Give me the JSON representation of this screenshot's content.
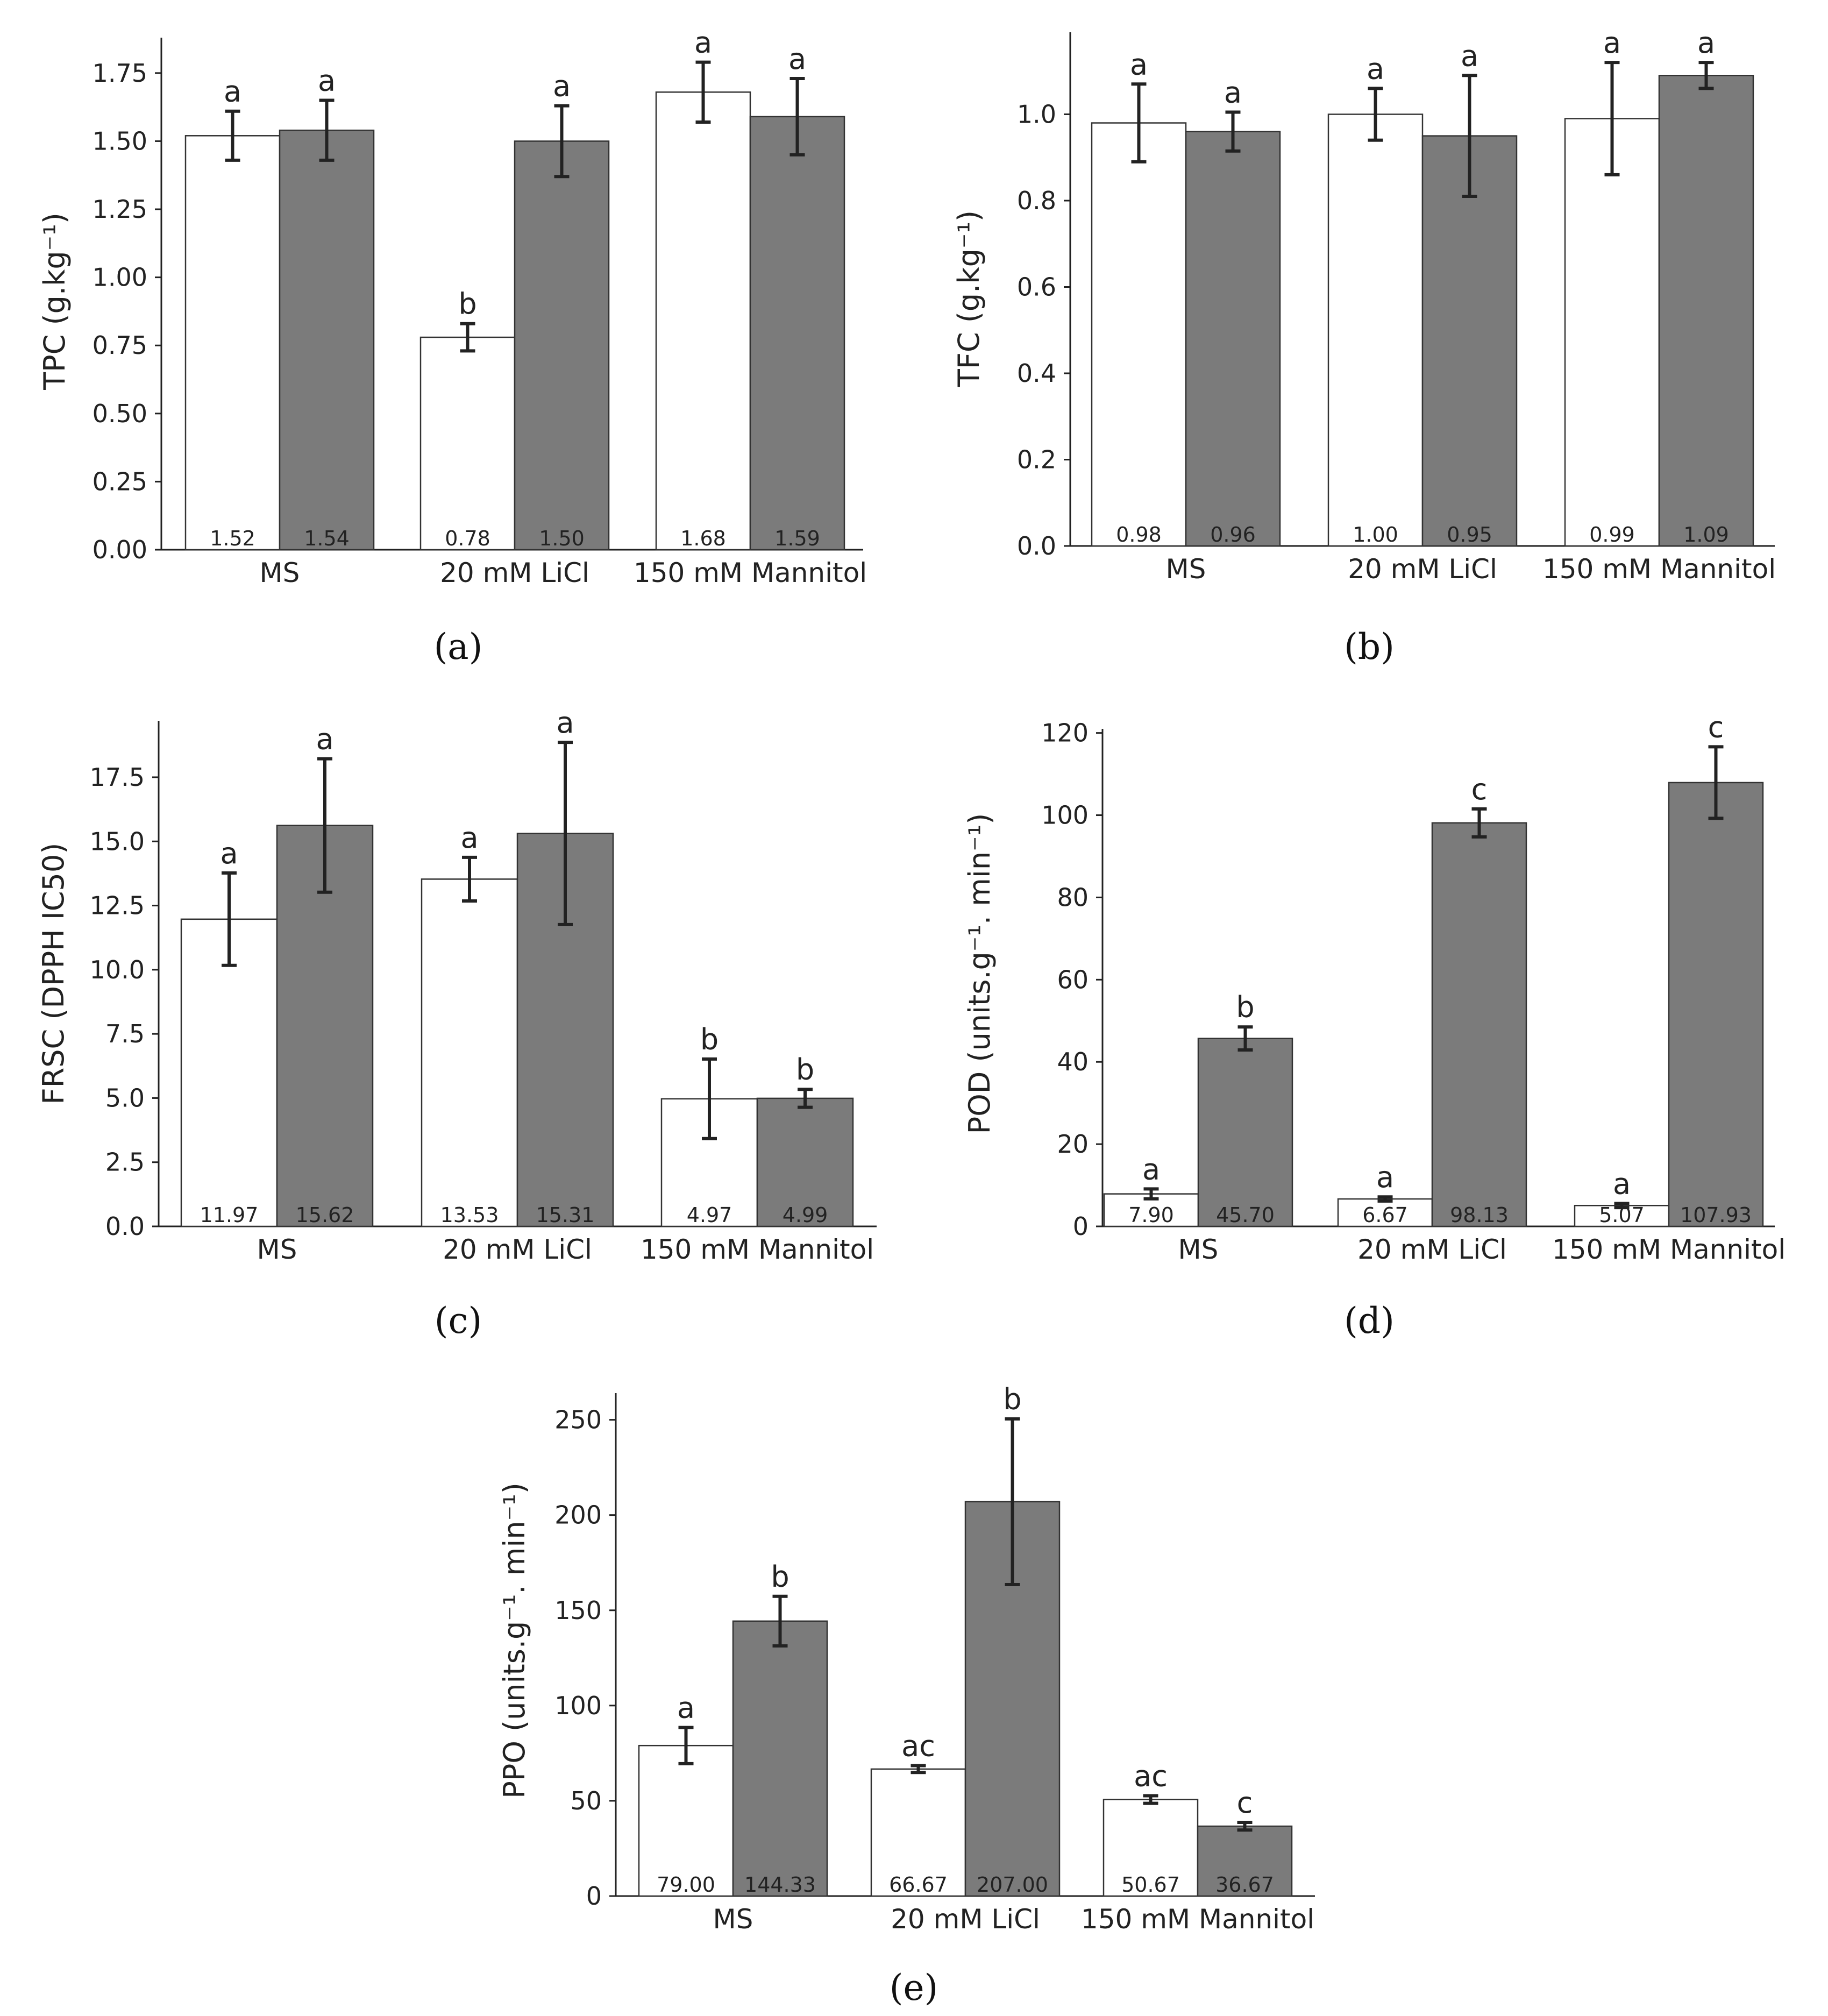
{
  "figure": {
    "panels": [
      {
        "id": "a",
        "label_text": "(a)"
      },
      {
        "id": "b",
        "label_text": "(b)"
      },
      {
        "id": "c",
        "label_text": "(c)"
      },
      {
        "id": "d",
        "label_text": "(d)"
      },
      {
        "id": "e",
        "label_text": "(e)"
      }
    ]
  },
  "colors": {
    "control_fill": "#ffffff",
    "treated_fill": "#7b7b7b",
    "axis": "#222222"
  },
  "chart_data": [
    {
      "id": "a",
      "type": "bar",
      "panel_label": "(a)",
      "ylabel": "TPC (g.kg⁻¹)",
      "ylim": [
        0,
        1.88
      ],
      "yticks": [
        0.0,
        0.25,
        0.5,
        0.75,
        1.0,
        1.25,
        1.5,
        1.75
      ],
      "ytick_labels": [
        "0.00",
        "0.25",
        "0.50",
        "0.75",
        "1.00",
        "1.25",
        "1.50",
        "1.75"
      ],
      "categories": [
        "MS",
        "20 mM LiCl",
        "150 mM Mannitol"
      ],
      "series": [
        {
          "name": "white",
          "values": [
            1.52,
            0.78,
            1.68
          ],
          "value_labels": [
            "1.52",
            "0.78",
            "1.68"
          ],
          "errors": [
            0.09,
            0.05,
            0.11
          ],
          "letters": [
            "a",
            "b",
            "a"
          ]
        },
        {
          "name": "gray",
          "values": [
            1.54,
            1.5,
            1.59
          ],
          "value_labels": [
            "1.54",
            "1.50",
            "1.59"
          ],
          "errors": [
            0.11,
            0.13,
            0.14
          ],
          "letters": [
            "a",
            "a",
            "a"
          ]
        }
      ]
    },
    {
      "id": "b",
      "type": "bar",
      "panel_label": "(b)",
      "ylabel": "TFC (g.kg⁻¹)",
      "ylim": [
        0,
        1.19
      ],
      "yticks": [
        0.0,
        0.2,
        0.4,
        0.6,
        0.8,
        1.0
      ],
      "ytick_labels": [
        "0.0",
        "0.2",
        "0.4",
        "0.6",
        "0.8",
        "1.0"
      ],
      "categories": [
        "MS",
        "20 mM LiCl",
        "150 mM Mannitol"
      ],
      "series": [
        {
          "name": "white",
          "values": [
            0.98,
            1.0,
            0.99
          ],
          "value_labels": [
            "0.98",
            "1.00",
            "0.99"
          ],
          "errors": [
            0.09,
            0.06,
            0.13
          ],
          "letters": [
            "a",
            "a",
            "a"
          ]
        },
        {
          "name": "gray",
          "values": [
            0.96,
            0.95,
            1.09
          ],
          "value_labels": [
            "0.96",
            "0.95",
            "1.09"
          ],
          "errors": [
            0.045,
            0.14,
            0.03
          ],
          "letters": [
            "a",
            "a",
            "a"
          ]
        }
      ]
    },
    {
      "id": "c",
      "type": "bar",
      "panel_label": "(c)",
      "ylabel": "FRSC (DPPH IC50)",
      "ylim": [
        0,
        19.7
      ],
      "yticks": [
        0.0,
        2.5,
        5.0,
        7.5,
        10.0,
        12.5,
        15.0,
        17.5
      ],
      "ytick_labels": [
        "0.0",
        "2.5",
        "5.0",
        "7.5",
        "10.0",
        "12.5",
        "15.0",
        "17.5"
      ],
      "categories": [
        "MS",
        "20 mM LiCl",
        "150 mM Mannitol"
      ],
      "series": [
        {
          "name": "white",
          "values": [
            11.97,
            13.53,
            4.97
          ],
          "value_labels": [
            "11.97",
            "13.53",
            "4.97"
          ],
          "errors": [
            1.8,
            0.85,
            1.55
          ],
          "letters": [
            "a",
            "a",
            "b"
          ]
        },
        {
          "name": "gray",
          "values": [
            15.62,
            15.31,
            4.99
          ],
          "value_labels": [
            "15.62",
            "15.31",
            "4.99"
          ],
          "errors": [
            2.6,
            3.55,
            0.35
          ],
          "letters": [
            "a",
            "a",
            "b"
          ]
        }
      ]
    },
    {
      "id": "d",
      "type": "bar",
      "panel_label": "(d)",
      "ylabel": "POD (units.g⁻¹. min⁻¹)",
      "ylim": [
        0,
        121
      ],
      "yticks": [
        0,
        20,
        40,
        60,
        80,
        100,
        120
      ],
      "ytick_labels": [
        "0",
        "20",
        "40",
        "60",
        "80",
        "100",
        "120"
      ],
      "categories": [
        "MS",
        "20 mM LiCl",
        "150 mM Mannitol"
      ],
      "series": [
        {
          "name": "white",
          "values": [
            7.9,
            6.67,
            5.07
          ],
          "value_labels": [
            "7.90",
            "6.67",
            "5.07"
          ],
          "errors": [
            1.2,
            0.5,
            0.5
          ],
          "letters": [
            "a",
            "a",
            "a"
          ]
        },
        {
          "name": "gray",
          "values": [
            45.7,
            98.13,
            107.93
          ],
          "value_labels": [
            "45.70",
            "98.13",
            "107.93"
          ],
          "errors": [
            2.8,
            3.4,
            8.7
          ],
          "letters": [
            "b",
            "c",
            "c"
          ]
        }
      ]
    },
    {
      "id": "e",
      "type": "bar",
      "panel_label": "(e)",
      "ylabel": "PPO (units.g⁻¹. min⁻¹)",
      "ylim": [
        0,
        264
      ],
      "yticks": [
        0,
        50,
        100,
        150,
        200,
        250
      ],
      "ytick_labels": [
        "0",
        "50",
        "100",
        "150",
        "200",
        "250"
      ],
      "categories": [
        "MS",
        "20 mM LiCl",
        "150 mM Mannitol"
      ],
      "series": [
        {
          "name": "white",
          "values": [
            79.0,
            66.67,
            50.67
          ],
          "value_labels": [
            "79.00",
            "66.67",
            "50.67"
          ],
          "errors": [
            9.5,
            1.8,
            2.0
          ],
          "letters": [
            "a",
            "ac",
            "ac"
          ]
        },
        {
          "name": "gray",
          "values": [
            144.33,
            207.0,
            36.67
          ],
          "value_labels": [
            "144.33",
            "207.00",
            "36.67"
          ],
          "errors": [
            13.0,
            43.5,
            2.0
          ],
          "letters": [
            "b",
            "b",
            "c"
          ]
        }
      ]
    }
  ]
}
